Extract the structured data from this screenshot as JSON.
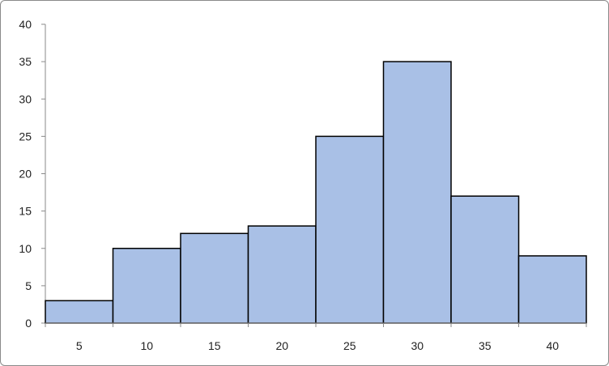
{
  "chart_data": {
    "type": "bar",
    "categories": [
      "5",
      "10",
      "15",
      "20",
      "25",
      "30",
      "35",
      "40"
    ],
    "values": [
      3,
      10,
      12,
      13,
      25,
      35,
      17,
      9
    ],
    "ylim": [
      0,
      40
    ],
    "yticks": [
      "0",
      "5",
      "10",
      "15",
      "20",
      "25",
      "30",
      "35",
      "40"
    ],
    "grid": false,
    "legend": "none",
    "colors": {
      "bar_fill": "#a9c0e6",
      "bar_stroke": "#000000",
      "axis": "#8a8a8a"
    }
  }
}
